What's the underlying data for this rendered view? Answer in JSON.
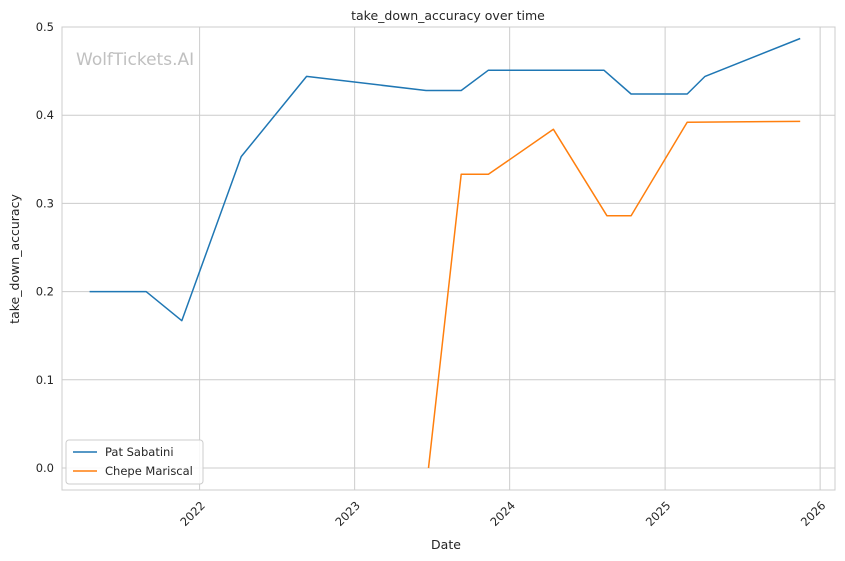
{
  "watermark": "WolfTickets.AI",
  "chart_data": {
    "type": "line",
    "title": "take_down_accuracy over time",
    "xlabel": "Date",
    "ylabel": "take_down_accuracy",
    "xlim": [
      "2021-02-11",
      "2026-02-05"
    ],
    "ylim": [
      -0.025,
      0.5
    ],
    "x_ticks": [
      "2022",
      "2023",
      "2024",
      "2025",
      "2026"
    ],
    "y_ticks": [
      "0.0",
      "0.1",
      "0.2",
      "0.3",
      "0.4",
      "0.5"
    ],
    "grid": true,
    "legend_position": "lower-left",
    "series": [
      {
        "name": "Pat Sabatini",
        "color": "#1f77b4",
        "points": [
          {
            "x": "2021-04-17",
            "y": 0.2
          },
          {
            "x": "2021-08-28",
            "y": 0.2
          },
          {
            "x": "2021-11-20",
            "y": 0.167
          },
          {
            "x": "2022-04-09",
            "y": 0.353
          },
          {
            "x": "2022-09-10",
            "y": 0.444
          },
          {
            "x": "2023-06-18",
            "y": 0.428
          },
          {
            "x": "2023-09-09",
            "y": 0.428
          },
          {
            "x": "2023-11-12",
            "y": 0.451
          },
          {
            "x": "2024-08-10",
            "y": 0.451
          },
          {
            "x": "2024-10-13",
            "y": 0.424
          },
          {
            "x": "2025-02-22",
            "y": 0.424
          },
          {
            "x": "2025-04-05",
            "y": 0.444
          },
          {
            "x": "2025-11-15",
            "y": 0.487
          }
        ]
      },
      {
        "name": "Chepe Mariscal",
        "color": "#ff7f0e",
        "points": [
          {
            "x": "2023-06-24",
            "y": 0.0
          },
          {
            "x": "2023-09-09",
            "y": 0.333
          },
          {
            "x": "2023-11-12",
            "y": 0.333
          },
          {
            "x": "2024-04-13",
            "y": 0.384
          },
          {
            "x": "2024-08-17",
            "y": 0.286
          },
          {
            "x": "2024-10-13",
            "y": 0.286
          },
          {
            "x": "2025-02-22",
            "y": 0.392
          },
          {
            "x": "2025-11-15",
            "y": 0.393
          }
        ]
      }
    ]
  }
}
